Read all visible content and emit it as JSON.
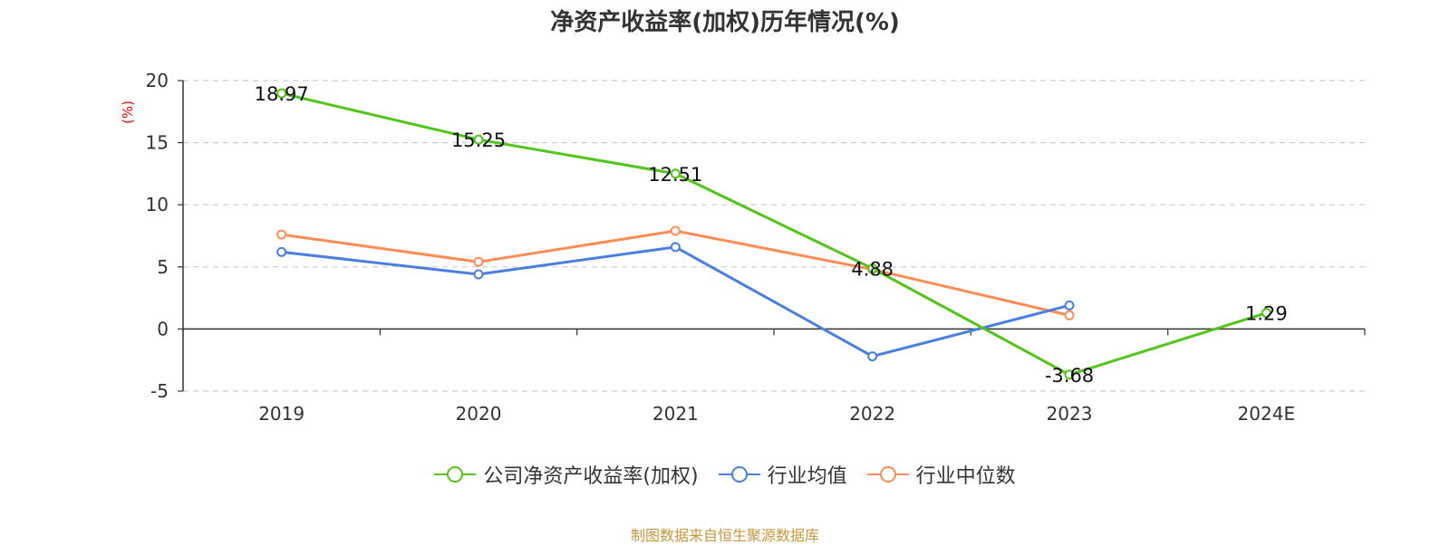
{
  "source_text": "制图数据来自恒生聚源数据库",
  "chart_data": {
    "type": "line",
    "title": "净资产收益率(加权)历年情况(%)",
    "ylabel": "(%)",
    "xlabel": "",
    "categories": [
      "2019",
      "2020",
      "2021",
      "2022",
      "2023",
      "2024E"
    ],
    "ylim": [
      -5,
      20
    ],
    "yticks": [
      20,
      15,
      10,
      5,
      0,
      -5
    ],
    "grid": true,
    "legend_position": "bottom",
    "series": [
      {
        "name": "公司净资产收益率(加权)",
        "color": "#52c41a",
        "values": [
          18.97,
          15.25,
          12.51,
          4.88,
          -3.68,
          1.29
        ],
        "labels": [
          "18.97",
          "15.25",
          "12.51",
          "4.88",
          "-3.68",
          "1.29"
        ]
      },
      {
        "name": "行业均值",
        "color": "#4a7fe0",
        "values": [
          6.2,
          4.4,
          6.6,
          -2.2,
          1.9,
          null
        ]
      },
      {
        "name": "行业中位数",
        "color": "#ff8c55",
        "values": [
          7.6,
          5.4,
          7.9,
          4.8,
          1.1,
          null
        ]
      }
    ]
  }
}
